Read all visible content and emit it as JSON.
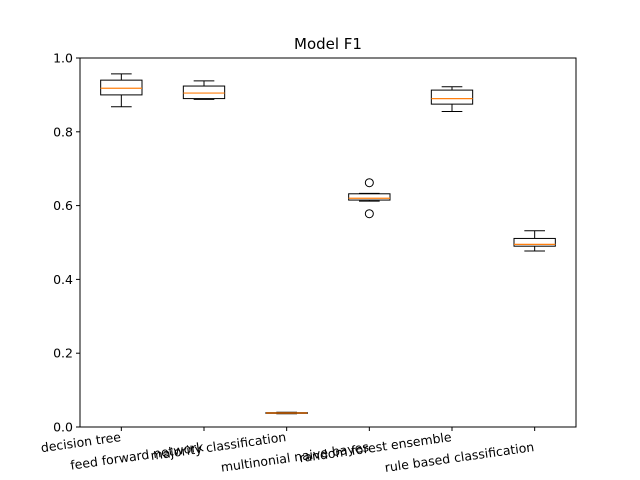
{
  "chart_data": {
    "type": "box",
    "title": "Model F1",
    "xlabel": "",
    "ylabel": "",
    "ylim": [
      0.0,
      1.0
    ],
    "yticks": [
      "0.0",
      "0.2",
      "0.4",
      "0.6",
      "0.8",
      "1.0"
    ],
    "grid": false,
    "categories": [
      "decision tree",
      "feed forward network",
      "majority classification",
      "multinonial naive bayes",
      "random forest ensemble",
      "rule based classification"
    ],
    "boxes": [
      {
        "whisker_low": 0.868,
        "q1": 0.9,
        "median": 0.918,
        "q3": 0.94,
        "whisker_high": 0.957,
        "outliers": []
      },
      {
        "whisker_low": 0.888,
        "q1": 0.89,
        "median": 0.905,
        "q3": 0.924,
        "whisker_high": 0.938,
        "outliers": []
      },
      {
        "whisker_low": 0.036,
        "q1": 0.037,
        "median": 0.038,
        "q3": 0.039,
        "whisker_high": 0.04,
        "outliers": []
      },
      {
        "whisker_low": 0.612,
        "q1": 0.615,
        "median": 0.62,
        "q3": 0.632,
        "whisker_high": 0.633,
        "outliers": [
          0.662,
          0.578
        ]
      },
      {
        "whisker_low": 0.855,
        "q1": 0.875,
        "median": 0.89,
        "q3": 0.913,
        "whisker_high": 0.922,
        "outliers": []
      },
      {
        "whisker_low": 0.477,
        "q1": 0.49,
        "median": 0.495,
        "q3": 0.511,
        "whisker_high": 0.532,
        "outliers": []
      }
    ],
    "colors": {
      "box": "#000000",
      "median": "#ff7f0e",
      "axes": "#000000"
    }
  }
}
